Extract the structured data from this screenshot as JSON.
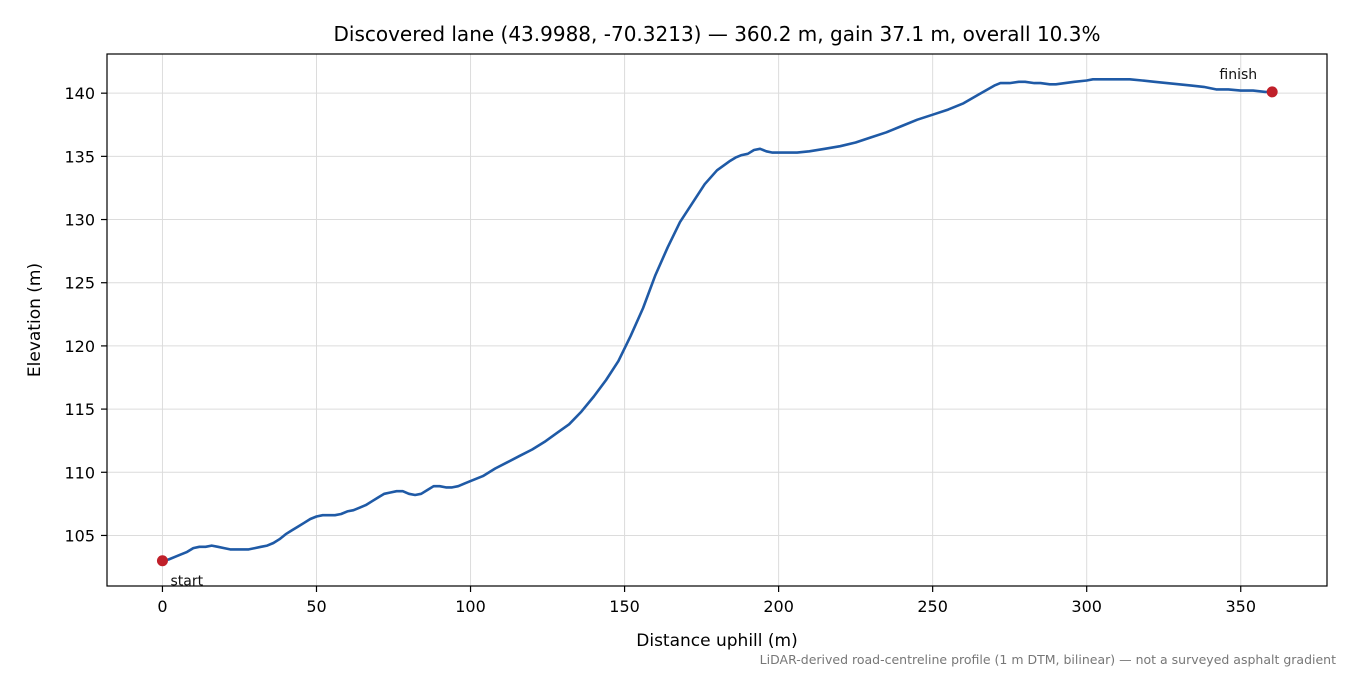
{
  "chart_data": {
    "type": "line",
    "title": "Discovered lane (43.9988, -70.3213) — 360.2 m, gain 37.1 m, overall 10.3%",
    "xlabel": "Distance uphill (m)",
    "ylabel": "Elevation (m)",
    "xlim": [
      -18,
      378
    ],
    "ylim": [
      101,
      143.1
    ],
    "xticks": [
      0,
      50,
      100,
      150,
      200,
      250,
      300,
      350
    ],
    "yticks": [
      105,
      110,
      115,
      120,
      125,
      130,
      135,
      140
    ],
    "grid": true,
    "line_color": "#1f5aa6",
    "marker_color": "#c0202a",
    "series": [
      {
        "x": [
          0,
          2,
          4,
          6,
          8,
          10,
          12,
          14,
          16,
          18,
          20,
          22,
          24,
          26,
          28,
          30,
          32,
          34,
          36,
          38,
          40,
          42,
          44,
          46,
          48,
          50,
          52,
          54,
          56,
          58,
          60,
          62,
          64,
          66,
          68,
          70,
          72,
          74,
          76,
          78,
          80,
          82,
          84,
          86,
          88,
          90,
          92,
          94,
          96,
          98,
          100,
          104,
          108,
          112,
          116,
          120,
          124,
          128,
          132,
          136,
          140,
          144,
          148,
          152,
          156,
          160,
          164,
          168,
          172,
          176,
          180,
          184,
          186,
          188,
          190,
          192,
          194,
          196,
          198,
          200,
          202,
          204,
          206,
          210,
          215,
          220,
          225,
          230,
          235,
          240,
          245,
          250,
          255,
          260,
          265,
          270,
          272,
          275,
          278,
          280,
          283,
          285,
          288,
          290,
          293,
          296,
          300,
          302,
          305,
          308,
          311,
          314,
          318,
          322,
          326,
          330,
          334,
          338,
          342,
          346,
          350,
          354,
          358,
          360.2
        ],
        "y": [
          103.0,
          103.1,
          103.3,
          103.5,
          103.7,
          104.0,
          104.1,
          104.1,
          104.2,
          104.1,
          104.0,
          103.9,
          103.9,
          103.9,
          103.9,
          104.0,
          104.1,
          104.2,
          104.4,
          104.7,
          105.1,
          105.4,
          105.7,
          106.0,
          106.3,
          106.5,
          106.6,
          106.6,
          106.6,
          106.7,
          106.9,
          107.0,
          107.2,
          107.4,
          107.7,
          108.0,
          108.3,
          108.4,
          108.5,
          108.5,
          108.3,
          108.2,
          108.3,
          108.6,
          108.9,
          108.9,
          108.8,
          108.8,
          108.9,
          109.1,
          109.3,
          109.7,
          110.3,
          110.8,
          111.3,
          111.8,
          112.4,
          113.1,
          113.8,
          114.8,
          116.0,
          117.3,
          118.8,
          120.8,
          123.0,
          125.6,
          127.8,
          129.8,
          131.3,
          132.8,
          133.9,
          134.6,
          134.9,
          135.1,
          135.2,
          135.5,
          135.6,
          135.4,
          135.3,
          135.3,
          135.3,
          135.3,
          135.3,
          135.4,
          135.6,
          135.8,
          136.1,
          136.5,
          136.9,
          137.4,
          137.9,
          138.3,
          138.7,
          139.2,
          139.9,
          140.6,
          140.8,
          140.8,
          140.9,
          140.9,
          140.8,
          140.8,
          140.7,
          140.7,
          140.8,
          140.9,
          141.0,
          141.1,
          141.1,
          141.1,
          141.1,
          141.1,
          141.0,
          140.9,
          140.8,
          140.7,
          140.6,
          140.5,
          140.3,
          140.3,
          140.2,
          140.2,
          140.1,
          140.1
        ]
      }
    ],
    "markers": [
      {
        "x": 0,
        "y": 103.0,
        "label": "start"
      },
      {
        "x": 360.2,
        "y": 140.1,
        "label": "finish"
      }
    ],
    "footnote": "LiDAR-derived road-centreline profile (1 m DTM, bilinear) — not a surveyed asphalt gradient"
  }
}
